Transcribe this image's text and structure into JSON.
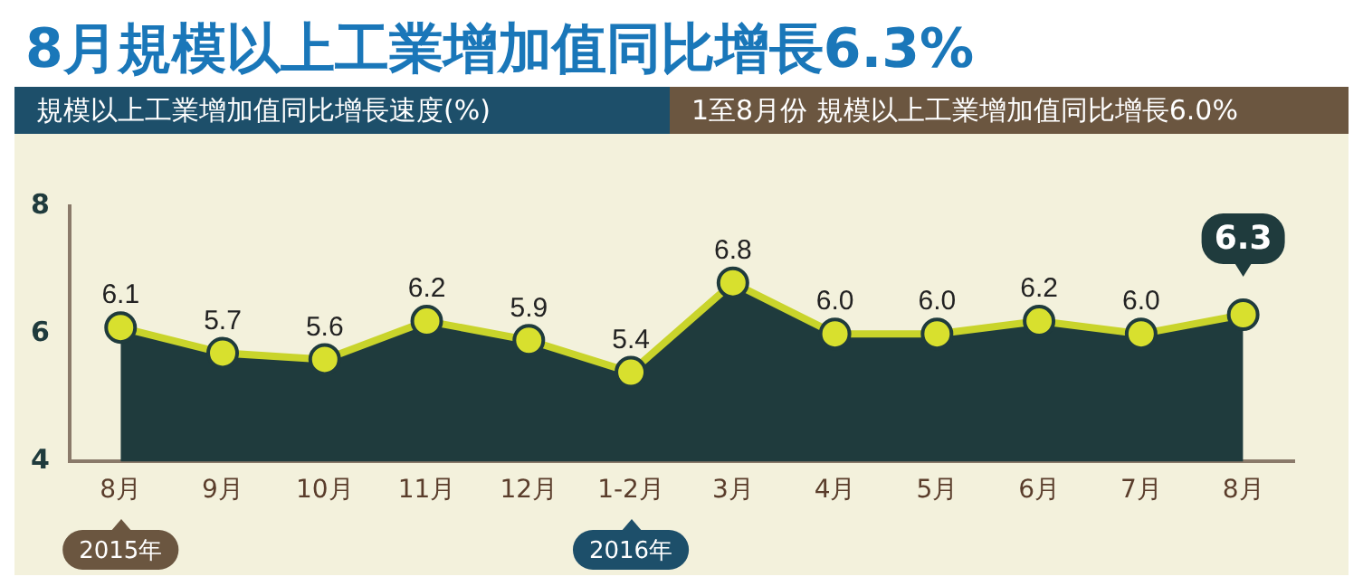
{
  "chart_data": {
    "type": "area",
    "title": "8月規模以上工業增加值同比增長6.3%",
    "ylabel": "規模以上工業增加值同比增長速度(%)",
    "annotations": [
      "1至8月份 規模以上工業增加值同比增長6.0%",
      "2015年",
      "2016年"
    ],
    "categories": [
      "8月",
      "9月",
      "10月",
      "11月",
      "12月",
      "1-2月",
      "3月",
      "4月",
      "5月",
      "6月",
      "7月",
      "8月"
    ],
    "series": [
      {
        "color": "#1f3b3d",
        "values": [
          6.1,
          5.7,
          5.6,
          6.2,
          5.9,
          5.4,
          6.8,
          6.0,
          6.0,
          6.2,
          6.0,
          6.3
        ],
        "value_labels": [
          "6.1",
          "5.7",
          "5.6",
          "6.2",
          "5.9",
          "5.4",
          "6.8",
          "6.0",
          "6.0",
          "6.2",
          "6.0",
          "6.3"
        ]
      }
    ],
    "ylim": [
      4,
      8
    ],
    "yticks": [
      4,
      6,
      8
    ],
    "grid": false,
    "legend": false,
    "marker": "circle"
  }
}
